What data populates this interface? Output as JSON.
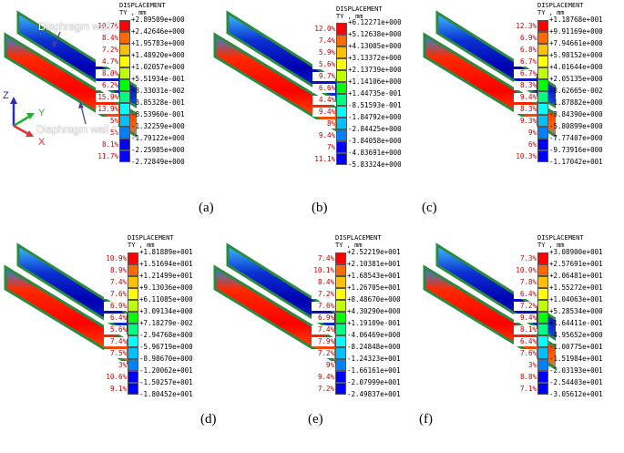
{
  "colors": [
    "#ff0000",
    "#ff6a00",
    "#ffc000",
    "#ffff00",
    "#c0ff00",
    "#00ff00",
    "#00ff80",
    "#00ffff",
    "#00c0ff",
    "#0080ff",
    "#0000ff"
  ],
  "annotations": {
    "wall2": "Diaphragm wall 2",
    "wall1": "Diaphragm wall 1"
  },
  "axes": {
    "z": "Z",
    "y": "Y",
    "x": "X"
  },
  "panels": [
    {
      "caption": "(a)",
      "title": "DISPLACEMENT",
      "unit": "TY , mm",
      "values": [
        "+2.89509e+000",
        "+2.42646e+000",
        "+1.95783e+000",
        "+1.48920e+000",
        "+1.02057e+000",
        "+5.51934e-001",
        "+8.33031e-002",
        "-3.85328e-001",
        "-8.53960e-001",
        "-1.32259e+000",
        "-1.79122e+000",
        "-2.25985e+000",
        "-2.72849e+000"
      ],
      "pcts": [
        "10.7%",
        "8.4%",
        "7.2%",
        "4.7%",
        "8.0%",
        "6.2%",
        "15.9%",
        "13.9%",
        "5%",
        "5%",
        "8.1%",
        "11.7%"
      ]
    },
    {
      "caption": "(b)",
      "title": "DISPLACEMENT",
      "unit": "TY , mm",
      "values": [
        "+6.12271e+000",
        "+5.12638e+000",
        "+4.13005e+000",
        "+3.13372e+000",
        "+2.13739e+000",
        "+1.14106e+000",
        "+1.44735e-001",
        "-8.51593e-001",
        "-1.84792e+000",
        "-2.84425e+000",
        "-3.84058e+000",
        "-4.83691e+000",
        "-5.83324e+000"
      ],
      "pcts": [
        "12.0%",
        "7.4%",
        "5.9%",
        "5.6%",
        "9.7%",
        "6.6%",
        "4.4%",
        "9.4%",
        "8%",
        "9.4%",
        "7%",
        "11.1%"
      ]
    },
    {
      "caption": "(c)",
      "title": "DISPLACEMENT",
      "unit": "TY , mm",
      "values": [
        "+1.18768e+001",
        "+9.91169e+000",
        "+7.94661e+000",
        "+5.98152e+000",
        "+4.01644e+000",
        "+2.05135e+000",
        "+8.62665e-002",
        "-1.87882e+000",
        "-3.84390e+000",
        "-5.80899e+000",
        "-7.77407e+000",
        "-9.73916e+000",
        "-1.17042e+001"
      ],
      "pcts": [
        "12.3%",
        "6.9%",
        "6.8%",
        "6.7%",
        "6.7%",
        "8.3%",
        "9.4%",
        "8.3%",
        "9.3%",
        "9%",
        "6%",
        "10.3%"
      ]
    },
    {
      "caption": "(d)",
      "title": "DISPLACEMENT",
      "unit": "TY , mm",
      "values": [
        "+1.81889e+001",
        "+1.51694e+001",
        "+1.21499e+001",
        "+9.13036e+000",
        "+6.11085e+000",
        "+3.09134e+000",
        "+7.18279e-002",
        "-2.94768e+000",
        "-5.96719e+000",
        "-8.98670e+000",
        "-1.20062e+001",
        "-1.50257e+001",
        "-1.80452e+001"
      ],
      "pcts": [
        "10.9%",
        "8.9%",
        "7.4%",
        "7.6%",
        "6.9%",
        "6.4%",
        "5.6%",
        "7.4%",
        "7.5%",
        "3%",
        "10.6%",
        "9.1%"
      ]
    },
    {
      "caption": "(e)",
      "title": "DISPLACEMENT",
      "unit": "TY , mm",
      "values": [
        "+2.52219e+001",
        "+2.10381e+001",
        "+1.68543e+001",
        "+1.26705e+001",
        "+8.48670e+000",
        "+4.30290e+000",
        "+1.19109e-001",
        "-4.06469e+000",
        "-8.24848e+000",
        "-1.24323e+001",
        "-1.66161e+001",
        "-2.07999e+001",
        "-2.49837e+001"
      ],
      "pcts": [
        "7.4%",
        "10.1%",
        "8.4%",
        "7.2%",
        "7.6%",
        "6.9%",
        "7.4%",
        "7.9%",
        "7.2%",
        "9%",
        "9.4%",
        "7.2%"
      ]
    },
    {
      "caption": "(f)",
      "title": "DISPLACEMENT",
      "unit": "TY , mm",
      "values": [
        "+3.08900e+001",
        "+2.57691e+001",
        "+2.06481e+001",
        "+1.55272e+001",
        "+1.04063e+001",
        "+5.28534e+000",
        "+1.64411e-001",
        "-4.95652e+000",
        "-1.00775e+001",
        "-1.51984e+001",
        "-2.03193e+001",
        "-2.54403e+001",
        "-3.05612e+001"
      ],
      "pcts": [
        "7.3%",
        "10.0%",
        "7.8%",
        "6.4%",
        "7.2%",
        "9.4%",
        "8.1%",
        "6.4%",
        "7.6%",
        "3%",
        "8.8%",
        "7.1%"
      ]
    }
  ]
}
